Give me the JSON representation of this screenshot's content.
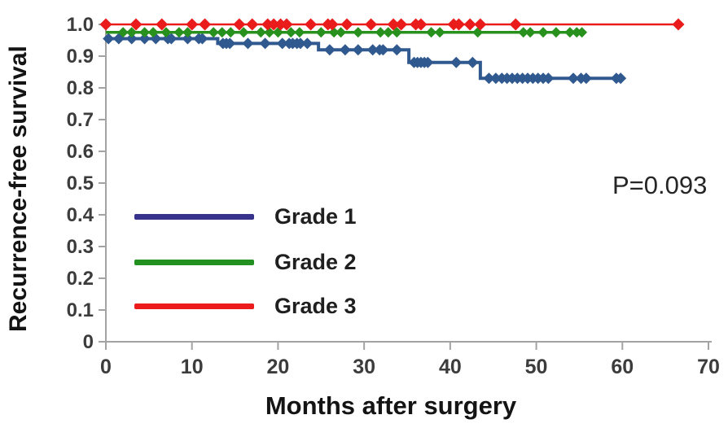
{
  "figure": {
    "y_axis_title": "Recurrence-free survival",
    "x_axis_title": "Months after surgery",
    "p_value_label": "P=0.093"
  },
  "legend": {
    "position": "lower-left-inside",
    "items": [
      {
        "label": "Grade 1",
        "color": "#37338D"
      },
      {
        "label": "Grade 2",
        "color": "#229122"
      },
      {
        "label": "Grade 3",
        "color": "#ED1C1C"
      }
    ]
  },
  "chart_data": {
    "type": "line",
    "subtype": "kaplan-meier-step-curves",
    "title": "",
    "xlabel": "Months after surgery",
    "ylabel": "Recurrence-free survival",
    "xlim": [
      0,
      70
    ],
    "ylim": [
      0,
      1.0
    ],
    "grid": false,
    "legend_position": "lower-left-inside",
    "annotation": {
      "text": "P=0.093"
    },
    "axis_color": "#a3a3a3",
    "tick_label_color": "#3c3c3c",
    "xticks": {
      "values": [
        0,
        10,
        20,
        30,
        40,
        50,
        60,
        70
      ],
      "labels": [
        "0",
        "10",
        "20",
        "30",
        "40",
        "50",
        "60",
        "70"
      ]
    },
    "yticks": {
      "values": [
        0,
        0.1,
        0.2,
        0.3,
        0.4,
        0.5,
        0.6,
        0.7,
        0.8,
        0.9,
        1.0
      ],
      "labels": [
        "0",
        "0.1",
        "0.2",
        "0.3",
        "0.4",
        "0.5",
        "0.6",
        "0.7",
        "0.8",
        "0.9",
        "1.0"
      ]
    },
    "series": [
      {
        "name": "Grade 1",
        "color": "#30598F",
        "line_width": 4,
        "marker": "diamond",
        "marker_size": 7,
        "steps": [
          [
            0,
            0.955
          ],
          [
            13,
            0.94
          ],
          [
            24.7,
            0.92
          ],
          [
            35.2,
            0.88
          ],
          [
            43.5,
            0.83
          ]
        ],
        "end_month": 60,
        "censor_marks": [
          0.3,
          1.5,
          3,
          4.5,
          5.8,
          7.2,
          7.6,
          9.5,
          10.8,
          11.2,
          13.6,
          14,
          14.4,
          16.5,
          18.5,
          20.5,
          21.3,
          21.7,
          22.2,
          22.6,
          23.4,
          26,
          27.8,
          29.3,
          31,
          31.8,
          32.2,
          33.8,
          35.8,
          36.2,
          36.6,
          37,
          37.4,
          40.7,
          42.6,
          44.5,
          45.3,
          46,
          46.6,
          47.2,
          47.8,
          48.4,
          49,
          49.6,
          50.2,
          50.8,
          51.4,
          54.3,
          55.2,
          55.8,
          59.3,
          59.8
        ]
      },
      {
        "name": "Grade 2",
        "color": "#28911E",
        "line_width": 3.5,
        "marker": "diamond",
        "marker_size": 6.5,
        "steps": [
          [
            0,
            0.975
          ]
        ],
        "end_month": 55.4,
        "censor_marks": [
          2,
          3,
          4.5,
          5.5,
          7,
          8.5,
          9.5,
          12.5,
          13.5,
          14.5,
          16,
          18,
          19,
          20,
          21.5,
          22.5,
          25,
          26.5,
          27.3,
          29.3,
          31.9,
          32.8,
          33.8,
          37.8,
          38.8,
          43.2,
          48.5,
          49.3,
          50.8,
          52.3,
          53.9,
          54.7,
          55.3
        ]
      },
      {
        "name": "Grade 3",
        "color": "#EA1B1B",
        "line_width": 2.5,
        "marker": "diamond",
        "marker_size": 7.5,
        "steps": [
          [
            0,
            1.0
          ]
        ],
        "end_month": 66.5,
        "censor_marks": [
          0,
          3.5,
          6.5,
          10,
          11.5,
          15.5,
          17,
          18.8,
          19.5,
          20.3,
          21,
          23.8,
          25.8,
          26.3,
          28,
          30.8,
          33.4,
          34.3,
          36,
          36.6,
          40.4,
          41,
          42.3,
          43.5,
          47.6,
          66.5
        ]
      }
    ]
  }
}
